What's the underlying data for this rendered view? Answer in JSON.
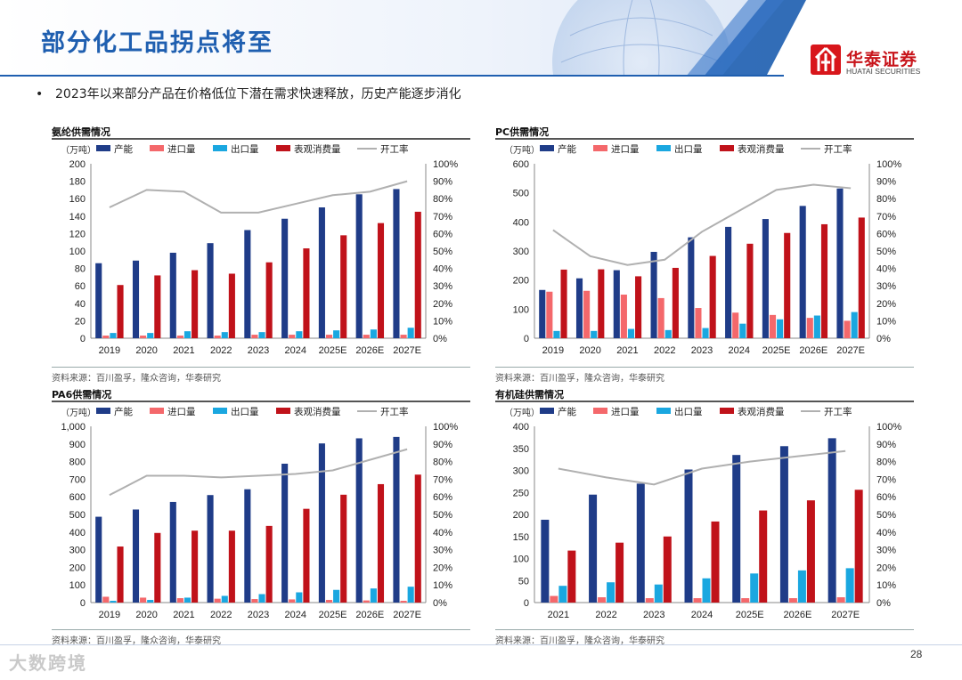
{
  "header": {
    "title": "部分化工品拐点将至",
    "logo_cn": "华泰证券",
    "logo_en": "HUATAI SECURITIES"
  },
  "bullet": {
    "dot": "•",
    "text": "2023年以来部分产品在价格低位下潜在需求快速释放，历史产能逐步消化"
  },
  "source_text": "资料来源：百川盈孚，隆众咨询，华泰研究",
  "page_number": "28",
  "watermark": "大数跨境",
  "colors": {
    "capacity": "#1f3c88",
    "import": "#f4686b",
    "export": "#1aa7e0",
    "consumption": "#c0121a",
    "utilization": "#b0b0b0",
    "title_blue": "#1f5fb0"
  },
  "chart_data": [
    {
      "type": "bar",
      "title": "氨纶供需情况",
      "unit": "（万吨）",
      "categories": [
        "2019",
        "2020",
        "2021",
        "2022",
        "2023",
        "2024",
        "2025E",
        "2026E",
        "2027E"
      ],
      "ylim": [
        0,
        200
      ],
      "yticks": [
        0,
        20,
        40,
        60,
        80,
        100,
        120,
        140,
        160,
        180,
        200
      ],
      "y2lim": [
        0,
        100
      ],
      "y2ticks": [
        "0%",
        "10%",
        "20%",
        "30%",
        "40%",
        "50%",
        "60%",
        "70%",
        "80%",
        "90%",
        "100%"
      ],
      "series": [
        {
          "name": "产能",
          "values": [
            86,
            89,
            98,
            109,
            124,
            137,
            150,
            165,
            171
          ]
        },
        {
          "name": "进口量",
          "values": [
            3,
            3,
            3,
            3,
            4,
            4,
            4,
            4,
            4
          ]
        },
        {
          "name": "出口量",
          "values": [
            6,
            6,
            8,
            7,
            7,
            8,
            9,
            10,
            12
          ]
        },
        {
          "name": "表观消费量",
          "values": [
            61,
            72,
            78,
            74,
            87,
            103,
            118,
            132,
            145
          ]
        }
      ],
      "line": {
        "name": "开工率",
        "values": [
          75,
          85,
          84,
          72,
          72,
          77,
          82,
          84,
          90
        ]
      }
    },
    {
      "type": "bar",
      "title": "PC供需情况",
      "unit": "（万吨）",
      "categories": [
        "2019",
        "2020",
        "2021",
        "2022",
        "2023",
        "2024",
        "2025E",
        "2026E",
        "2027E"
      ],
      "ylim": [
        0,
        600
      ],
      "yticks": [
        0,
        100,
        200,
        300,
        400,
        500,
        600
      ],
      "y2lim": [
        0,
        100
      ],
      "y2ticks": [
        "0%",
        "10%",
        "20%",
        "30%",
        "40%",
        "50%",
        "60%",
        "70%",
        "80%",
        "90%",
        "100%"
      ],
      "series": [
        {
          "name": "产能",
          "values": [
            166,
            206,
            234,
            297,
            347,
            383,
            410,
            455,
            515
          ]
        },
        {
          "name": "进口量",
          "values": [
            160,
            163,
            150,
            138,
            104,
            88,
            80,
            70,
            60
          ]
        },
        {
          "name": "出口量",
          "values": [
            25,
            25,
            32,
            28,
            35,
            50,
            65,
            78,
            90
          ]
        },
        {
          "name": "表观消费量",
          "values": [
            236,
            237,
            213,
            242,
            283,
            325,
            362,
            392,
            415
          ]
        }
      ],
      "line": {
        "name": "开工率",
        "values": [
          62,
          47,
          42,
          45,
          61,
          73,
          85,
          88,
          86
        ]
      }
    },
    {
      "type": "bar",
      "title": "PA6供需情况",
      "unit": "（万吨）",
      "categories": [
        "2019",
        "2020",
        "2021",
        "2022",
        "2023",
        "2024",
        "2025E",
        "2026E",
        "2027E"
      ],
      "ylim": [
        0,
        1000
      ],
      "yticks": [
        "0",
        "100",
        "200",
        "300",
        "400",
        "500",
        "600",
        "700",
        "800",
        "900",
        "1,000"
      ],
      "y2lim": [
        0,
        100
      ],
      "y2ticks": [
        "0%",
        "10%",
        "20%",
        "30%",
        "40%",
        "50%",
        "60%",
        "70%",
        "80%",
        "90%",
        "100%"
      ],
      "series": [
        {
          "name": "产能",
          "values": [
            487,
            528,
            571,
            610,
            643,
            788,
            903,
            932,
            940
          ]
        },
        {
          "name": "进口量",
          "values": [
            33,
            28,
            25,
            22,
            20,
            18,
            15,
            12,
            10
          ]
        },
        {
          "name": "出口量",
          "values": [
            10,
            15,
            28,
            38,
            48,
            58,
            72,
            80,
            90
          ]
        },
        {
          "name": "表观消费量",
          "values": [
            318,
            395,
            408,
            408,
            435,
            532,
            612,
            672,
            726
          ]
        }
      ],
      "line": {
        "name": "开工率",
        "values": [
          61,
          72,
          72,
          71,
          72,
          73,
          75,
          81,
          87
        ]
      }
    },
    {
      "type": "bar",
      "title": "有机硅供需情况",
      "unit": "（万吨）",
      "categories": [
        "2021",
        "2022",
        "2023",
        "2024",
        "2025E",
        "2026E",
        "2027E"
      ],
      "ylim": [
        0,
        400
      ],
      "yticks": [
        0,
        50,
        100,
        150,
        200,
        250,
        300,
        350,
        400
      ],
      "y2lim": [
        0,
        100
      ],
      "y2ticks": [
        "0%",
        "10%",
        "20%",
        "30%",
        "40%",
        "50%",
        "60%",
        "70%",
        "80%",
        "90%",
        "100%"
      ],
      "series": [
        {
          "name": "产能",
          "values": [
            188,
            245,
            270,
            302,
            335,
            355,
            373
          ]
        },
        {
          "name": "进口量",
          "values": [
            15,
            12,
            10,
            10,
            10,
            10,
            12
          ]
        },
        {
          "name": "出口量",
          "values": [
            38,
            46,
            41,
            55,
            66,
            73,
            78
          ]
        },
        {
          "name": "表观消费量",
          "values": [
            118,
            136,
            150,
            184,
            209,
            232,
            256
          ]
        }
      ],
      "line": {
        "name": "开工率",
        "values": [
          76,
          71,
          67,
          76,
          80,
          83,
          86
        ]
      }
    }
  ]
}
